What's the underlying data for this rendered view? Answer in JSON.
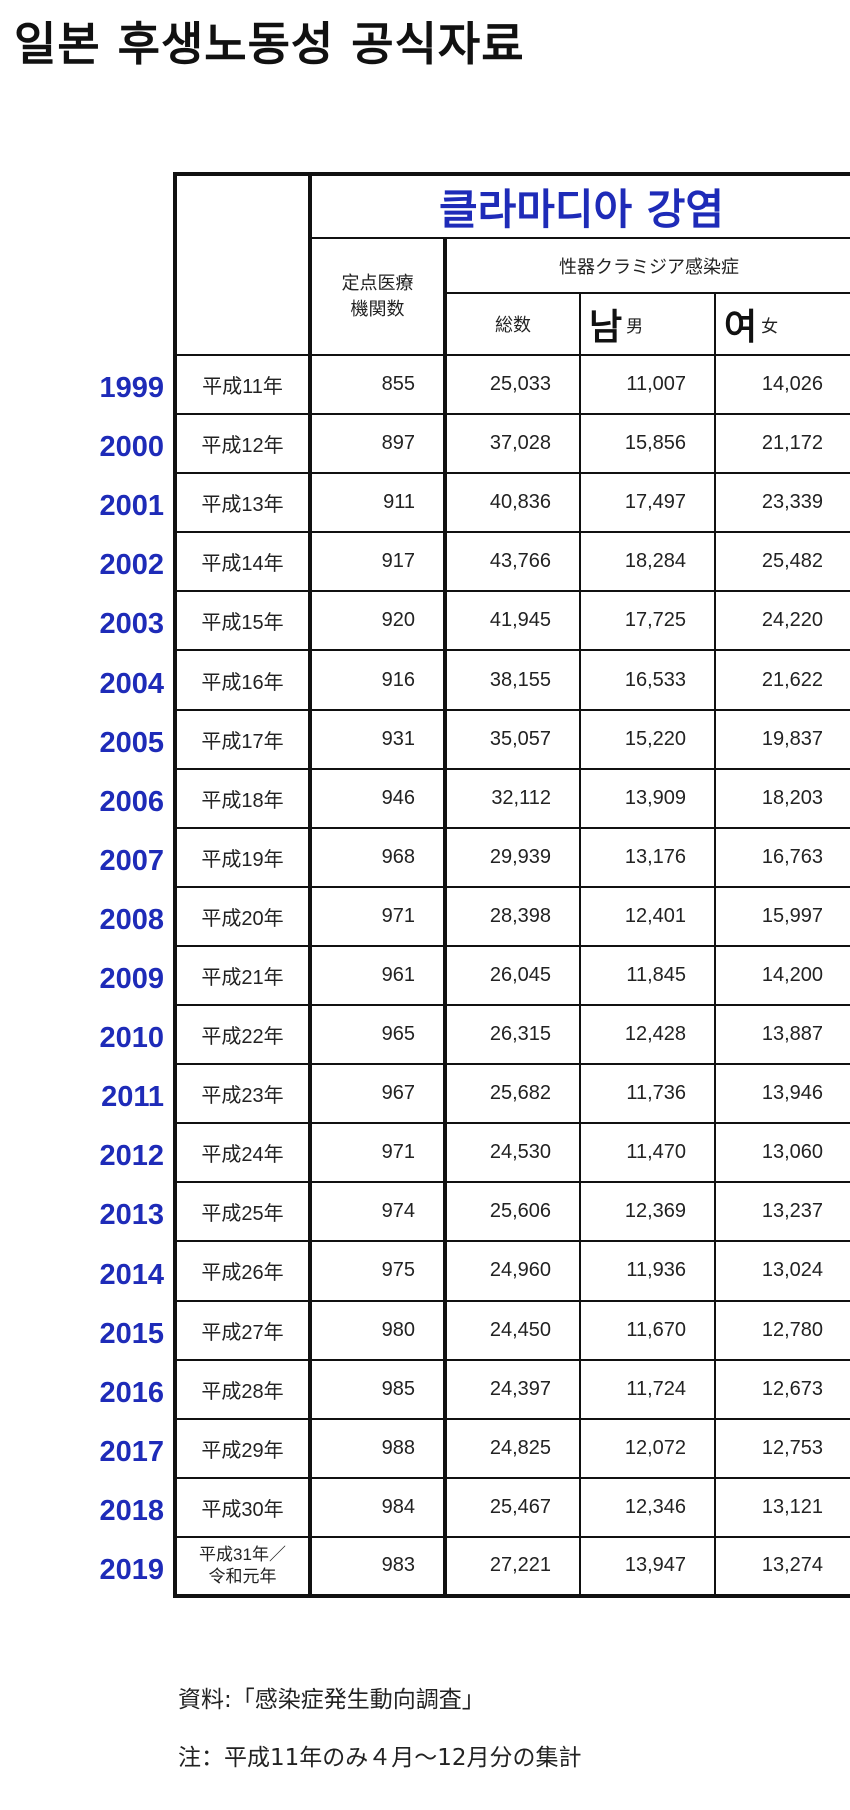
{
  "page_title": "일본 후생노동성 공식자료",
  "header": {
    "banner": "클라마디아 강염",
    "institutions": "定点医療\n機関数",
    "disease_group": "性器クラミジア感染症",
    "total": "総数",
    "male_kr": "남",
    "male_jp": "男",
    "female_kr": "여",
    "female_jp": "女"
  },
  "rows": [
    {
      "year": "1999",
      "era": "平成11年",
      "institutions": "855",
      "total": "25,033",
      "male": "11,007",
      "female": "14,026"
    },
    {
      "year": "2000",
      "era": "平成12年",
      "institutions": "897",
      "total": "37,028",
      "male": "15,856",
      "female": "21,172"
    },
    {
      "year": "2001",
      "era": "平成13年",
      "institutions": "911",
      "total": "40,836",
      "male": "17,497",
      "female": "23,339"
    },
    {
      "year": "2002",
      "era": "平成14年",
      "institutions": "917",
      "total": "43,766",
      "male": "18,284",
      "female": "25,482"
    },
    {
      "year": "2003",
      "era": "平成15年",
      "institutions": "920",
      "total": "41,945",
      "male": "17,725",
      "female": "24,220"
    },
    {
      "year": "2004",
      "era": "平成16年",
      "institutions": "916",
      "total": "38,155",
      "male": "16,533",
      "female": "21,622"
    },
    {
      "year": "2005",
      "era": "平成17年",
      "institutions": "931",
      "total": "35,057",
      "male": "15,220",
      "female": "19,837"
    },
    {
      "year": "2006",
      "era": "平成18年",
      "institutions": "946",
      "total": "32,112",
      "male": "13,909",
      "female": "18,203"
    },
    {
      "year": "2007",
      "era": "平成19年",
      "institutions": "968",
      "total": "29,939",
      "male": "13,176",
      "female": "16,763"
    },
    {
      "year": "2008",
      "era": "平成20年",
      "institutions": "971",
      "total": "28,398",
      "male": "12,401",
      "female": "15,997"
    },
    {
      "year": "2009",
      "era": "平成21年",
      "institutions": "961",
      "total": "26,045",
      "male": "11,845",
      "female": "14,200"
    },
    {
      "year": "2010",
      "era": "平成22年",
      "institutions": "965",
      "total": "26,315",
      "male": "12,428",
      "female": "13,887"
    },
    {
      "year": "2011",
      "era": "平成23年",
      "institutions": "967",
      "total": "25,682",
      "male": "11,736",
      "female": "13,946"
    },
    {
      "year": "2012",
      "era": "平成24年",
      "institutions": "971",
      "total": "24,530",
      "male": "11,470",
      "female": "13,060"
    },
    {
      "year": "2013",
      "era": "平成25年",
      "institutions": "974",
      "total": "25,606",
      "male": "12,369",
      "female": "13,237"
    },
    {
      "year": "2014",
      "era": "平成26年",
      "institutions": "975",
      "total": "24,960",
      "male": "11,936",
      "female": "13,024"
    },
    {
      "year": "2015",
      "era": "平成27年",
      "institutions": "980",
      "total": "24,450",
      "male": "11,670",
      "female": "12,780"
    },
    {
      "year": "2016",
      "era": "平成28年",
      "institutions": "985",
      "total": "24,397",
      "male": "11,724",
      "female": "12,673"
    },
    {
      "year": "2017",
      "era": "平成29年",
      "institutions": "988",
      "total": "24,825",
      "male": "12,072",
      "female": "12,753"
    },
    {
      "year": "2018",
      "era": "平成30年",
      "institutions": "984",
      "total": "25,467",
      "male": "12,346",
      "female": "13,121"
    },
    {
      "year": "2019",
      "era": "平成31年／\n令和元年",
      "institutions": "983",
      "total": "27,221",
      "male": "13,947",
      "female": "13,274"
    }
  ],
  "footnotes": {
    "source": "資料:「感染症発生動向調査」",
    "note": "注：平成11年のみ４月～12月分の集計"
  }
}
